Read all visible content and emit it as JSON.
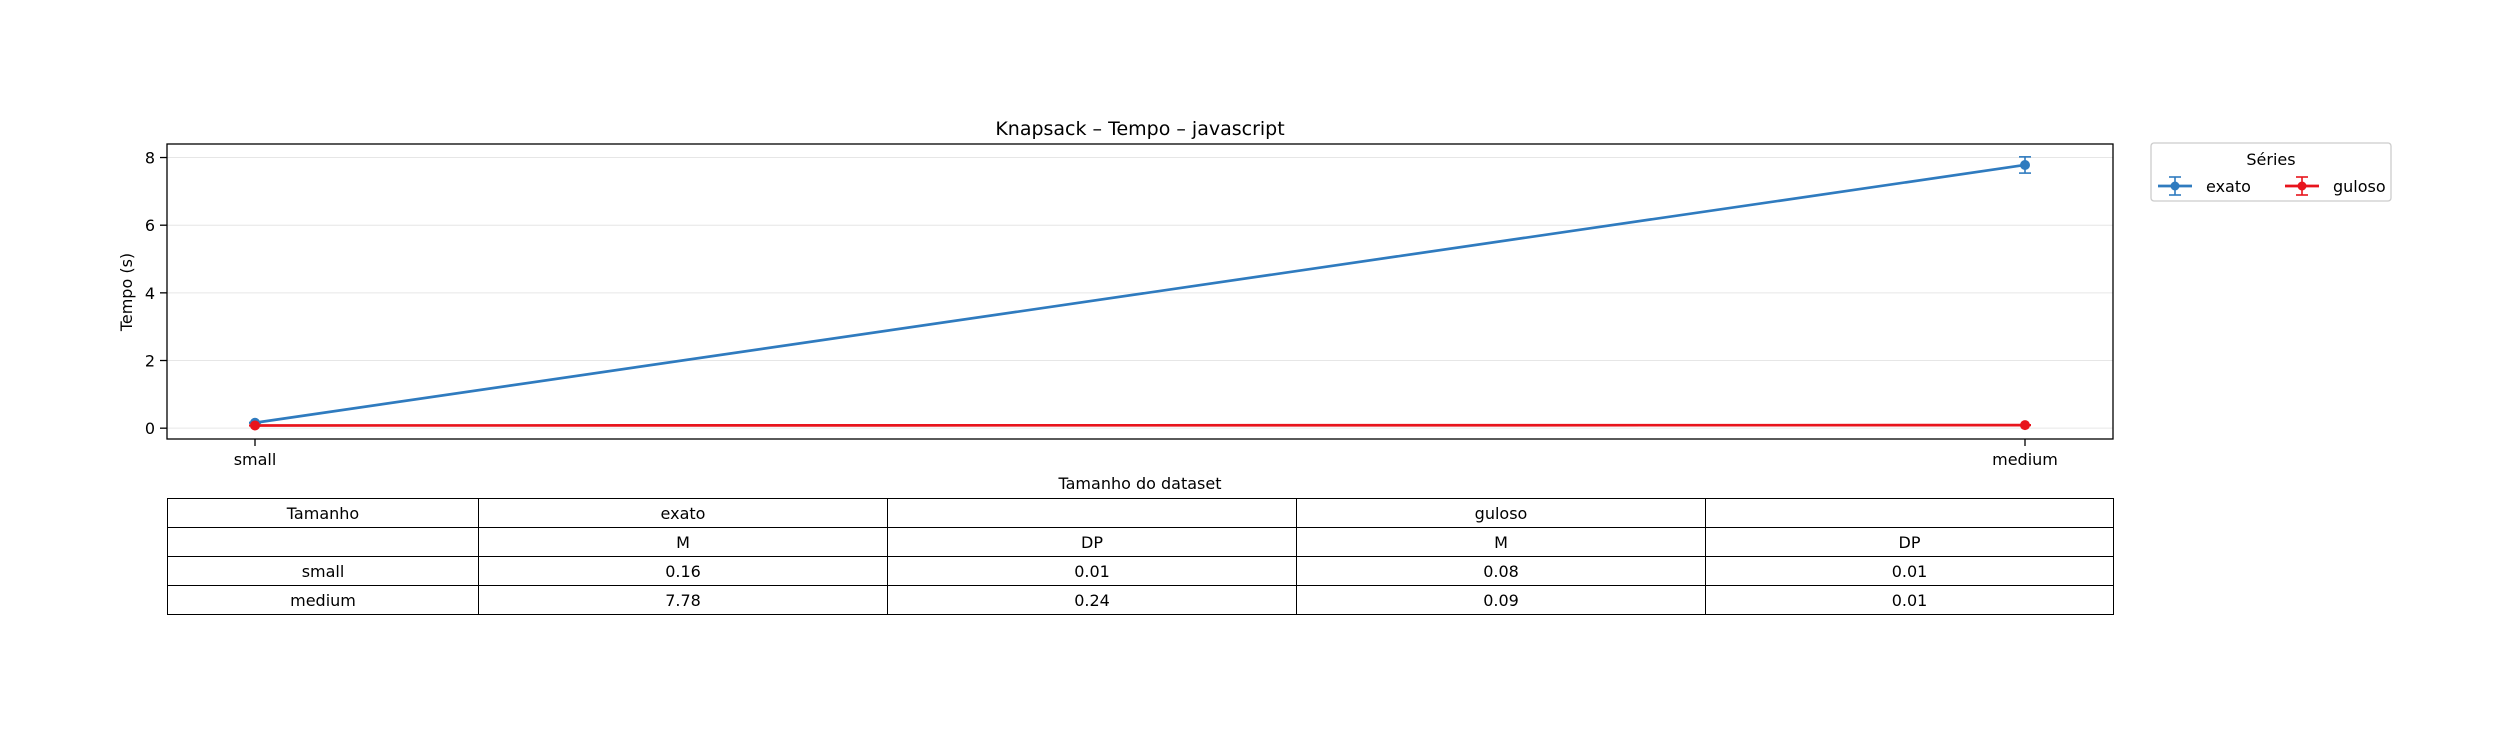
{
  "chart_data": {
    "type": "line",
    "title": "Knapsack – Tempo – javascript",
    "xlabel": "Tamanho do dataset",
    "ylabel": "Tempo (s)",
    "categories": [
      "small",
      "medium"
    ],
    "yticks": [
      "0",
      "2",
      "4",
      "6",
      "8"
    ],
    "ylim": [
      -0.32,
      8.4
    ],
    "grid": "y",
    "legend": {
      "title": "Séries",
      "placement": "outside top-right",
      "columns": 2
    },
    "series": [
      {
        "name": "exato",
        "color": "#2f7bbf",
        "values": [
          0.16,
          7.78
        ],
        "errors": [
          0.01,
          0.24
        ]
      },
      {
        "name": "guloso",
        "color": "#e8141c",
        "values": [
          0.08,
          0.09
        ],
        "errors": [
          0.01,
          0.01
        ]
      }
    ]
  },
  "table": {
    "rows": [
      [
        "Tamanho",
        "exato",
        "",
        "guloso",
        ""
      ],
      [
        "",
        "M",
        "DP",
        "M",
        "DP"
      ],
      [
        "small",
        "0.16",
        "0.01",
        "0.08",
        "0.01"
      ],
      [
        "medium",
        "7.78",
        "0.24",
        "0.09",
        "0.01"
      ]
    ]
  }
}
